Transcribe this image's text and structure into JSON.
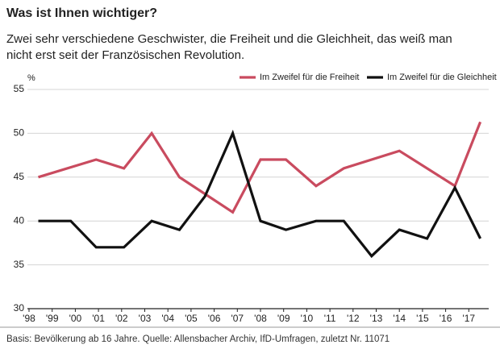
{
  "chart_data": {
    "type": "line",
    "title": "Was ist Ihnen wichtiger?",
    "subtitle": [
      "Zwei sehr verschiedene Geschwister, die Freiheit und die Gleichheit, das weiß man",
      "nicht erst seit der Französischen Revolution."
    ],
    "y_label": "%",
    "note": "Basis: Bevölkerung ab 16 Jahre. Quelle: Allensbacher Archiv, IfD-Umfragen, zuletzt Nr. 11071",
    "series": [
      {
        "name": "Im Zweifel für die Freiheit",
        "color": "#c94b5f",
        "x": [
          1998.4,
          2000.9,
          2002.1,
          2003.3,
          2004.5,
          2006.8,
          2008.0,
          2009.1,
          2010.4,
          2011.6,
          2014.0,
          2016.4,
          2017.5
        ],
        "values": [
          45,
          47,
          46,
          50,
          45,
          41,
          47,
          47,
          44,
          46,
          48,
          44,
          51.3
        ]
      },
      {
        "name": "Im Zweifel für die Gleichheit",
        "color": "#111111",
        "x": [
          1998.4,
          1999.8,
          2000.9,
          2002.1,
          2003.3,
          2004.5,
          2005.6,
          2006.8,
          2008.0,
          2009.1,
          2010.4,
          2011.6,
          2012.8,
          2014.0,
          2015.2,
          2016.4,
          2017.5
        ],
        "values": [
          40,
          40,
          37,
          37,
          40,
          39,
          42.8,
          50,
          40,
          39,
          40,
          40,
          36,
          39,
          38,
          43.8,
          38
        ]
      }
    ],
    "xlim": [
      1998,
      2017.9
    ],
    "xticks": [
      {
        "value": 1998,
        "label": "'98"
      },
      {
        "value": 1999,
        "label": "'99"
      },
      {
        "value": 2000,
        "label": "'00"
      },
      {
        "value": 2001,
        "label": "'01"
      },
      {
        "value": 2002,
        "label": "'02"
      },
      {
        "value": 2003,
        "label": "'03"
      },
      {
        "value": 2004,
        "label": "'04"
      },
      {
        "value": 2005,
        "label": "'05"
      },
      {
        "value": 2006,
        "label": "'06"
      },
      {
        "value": 2007,
        "label": "'07"
      },
      {
        "value": 2008,
        "label": "'08"
      },
      {
        "value": 2009,
        "label": "'09"
      },
      {
        "value": 2010,
        "label": "'10"
      },
      {
        "value": 2011,
        "label": "'11"
      },
      {
        "value": 2012,
        "label": "'12"
      },
      {
        "value": 2013,
        "label": "'13"
      },
      {
        "value": 2014,
        "label": "'14"
      },
      {
        "value": 2015,
        "label": "'15"
      },
      {
        "value": 2016,
        "label": "'16"
      },
      {
        "value": 2017,
        "label": "'17"
      }
    ],
    "ylim": [
      30,
      55
    ],
    "yticks": [
      30,
      35,
      40,
      45,
      50,
      55
    ],
    "grid": true
  }
}
